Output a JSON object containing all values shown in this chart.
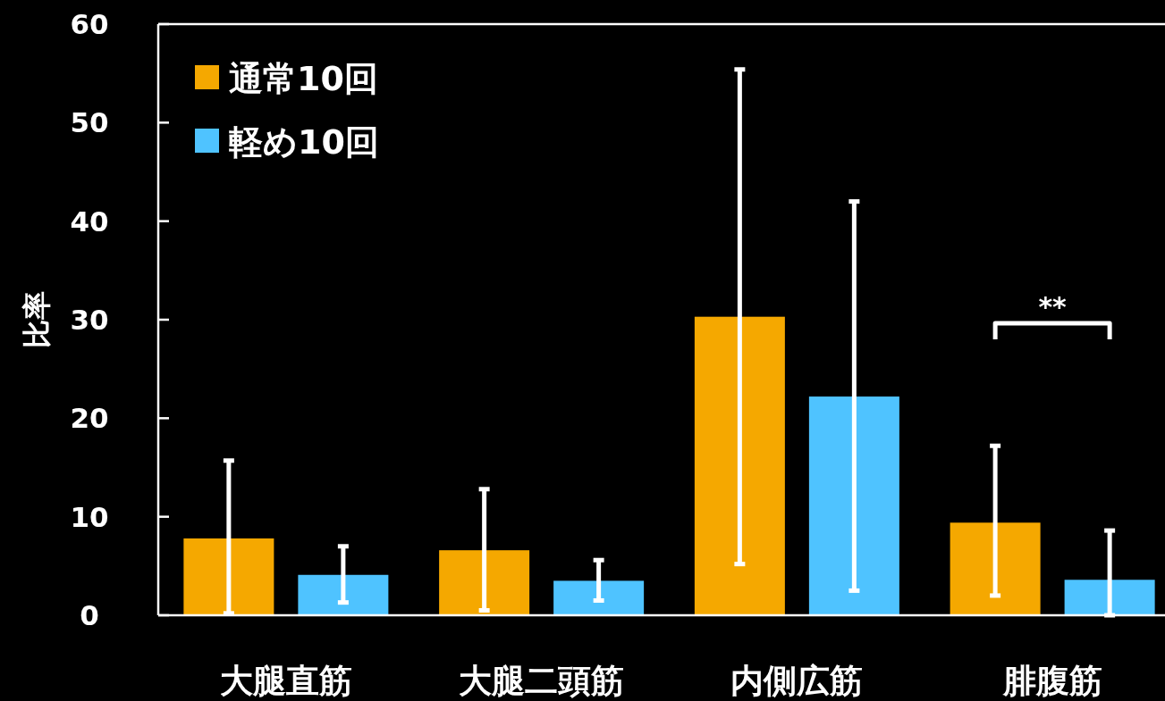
{
  "chart_data": {
    "type": "bar",
    "ylabel": "比率",
    "categories": [
      "大腿直筋",
      "大腿二頭筋",
      "内側広筋",
      "腓腹筋"
    ],
    "series": [
      {
        "name": "通常10回",
        "color": "#f5a800",
        "values": [
          7.8,
          6.6,
          30.3,
          9.4
        ],
        "errors": [
          [
            0.2,
            15.7
          ],
          [
            0.5,
            12.8
          ],
          [
            5.2,
            55.4
          ],
          [
            2.0,
            17.2
          ]
        ]
      },
      {
        "name": "軽め10回",
        "color": "#4fc3ff",
        "values": [
          4.1,
          3.5,
          22.2,
          3.6
        ],
        "errors": [
          [
            1.3,
            7.0
          ],
          [
            1.5,
            5.6
          ],
          [
            2.5,
            42.0
          ],
          [
            0,
            8.6
          ]
        ]
      }
    ],
    "ylim": [
      0,
      60
    ],
    "yticks": [
      0,
      10,
      20,
      30,
      40,
      50,
      60
    ],
    "legend": "top left",
    "annotations": [
      "**"
    ]
  }
}
